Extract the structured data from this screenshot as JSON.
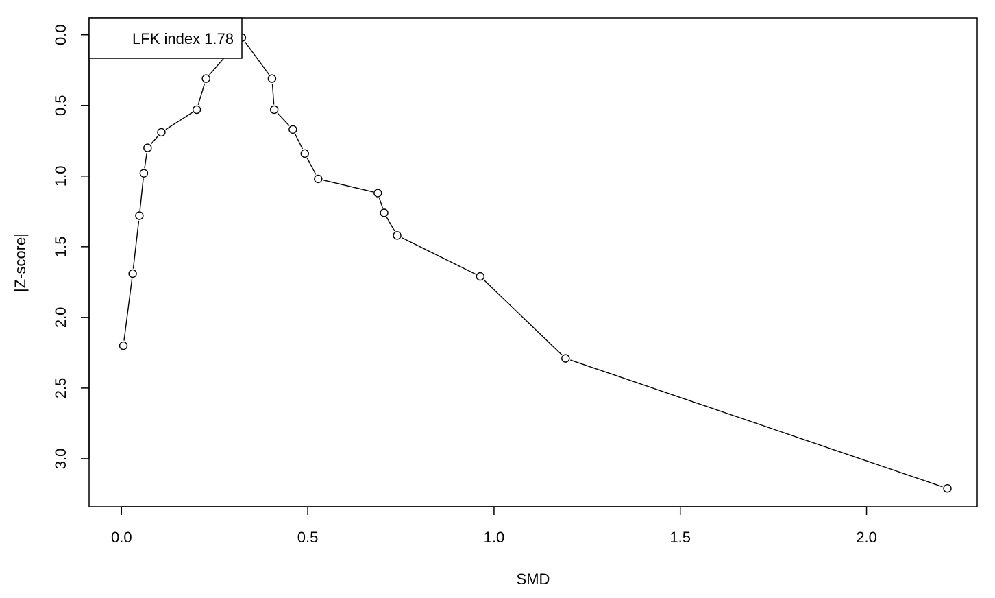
{
  "chart_data": {
    "type": "line",
    "title": "",
    "xlabel": "SMD",
    "ylabel": "|Z-score|",
    "xlim": [
      -0.087,
      2.297
    ],
    "ylim": [
      -0.12,
      3.34
    ],
    "y_reversed": true,
    "x_ticks": [
      {
        "value": 0.0,
        "label": "0.0"
      },
      {
        "value": 0.5,
        "label": "0.5"
      },
      {
        "value": 1.0,
        "label": "1.0"
      },
      {
        "value": 1.5,
        "label": "1.5"
      },
      {
        "value": 2.0,
        "label": "2.0"
      }
    ],
    "y_ticks": [
      {
        "value": 0.0,
        "label": "0.0"
      },
      {
        "value": 0.5,
        "label": "0.5"
      },
      {
        "value": 1.0,
        "label": "1.0"
      },
      {
        "value": 1.5,
        "label": "1.5"
      },
      {
        "value": 2.0,
        "label": "2.0"
      },
      {
        "value": 2.5,
        "label": "2.5"
      },
      {
        "value": 3.0,
        "label": "3.0"
      }
    ],
    "grid": false,
    "series": [
      {
        "points": [
          {
            "x": 0.005,
            "y": 2.2
          },
          {
            "x": 0.03,
            "y": 1.69
          },
          {
            "x": 0.048,
            "y": 1.28
          },
          {
            "x": 0.06,
            "y": 0.98
          },
          {
            "x": 0.07,
            "y": 0.8
          },
          {
            "x": 0.107,
            "y": 0.69
          },
          {
            "x": 0.202,
            "y": 0.53
          },
          {
            "x": 0.227,
            "y": 0.31
          },
          {
            "x": 0.323,
            "y": 0.02
          },
          {
            "x": 0.404,
            "y": 0.31
          },
          {
            "x": 0.41,
            "y": 0.53
          },
          {
            "x": 0.46,
            "y": 0.67
          },
          {
            "x": 0.492,
            "y": 0.84
          },
          {
            "x": 0.528,
            "y": 1.02
          },
          {
            "x": 0.688,
            "y": 1.12
          },
          {
            "x": 0.705,
            "y": 1.26
          },
          {
            "x": 0.74,
            "y": 1.42
          },
          {
            "x": 0.963,
            "y": 1.71
          },
          {
            "x": 1.192,
            "y": 2.29
          },
          {
            "x": 2.217,
            "y": 3.21
          }
        ]
      }
    ],
    "legend": {
      "position": "top-left",
      "text": "LFK index 1.78"
    }
  }
}
